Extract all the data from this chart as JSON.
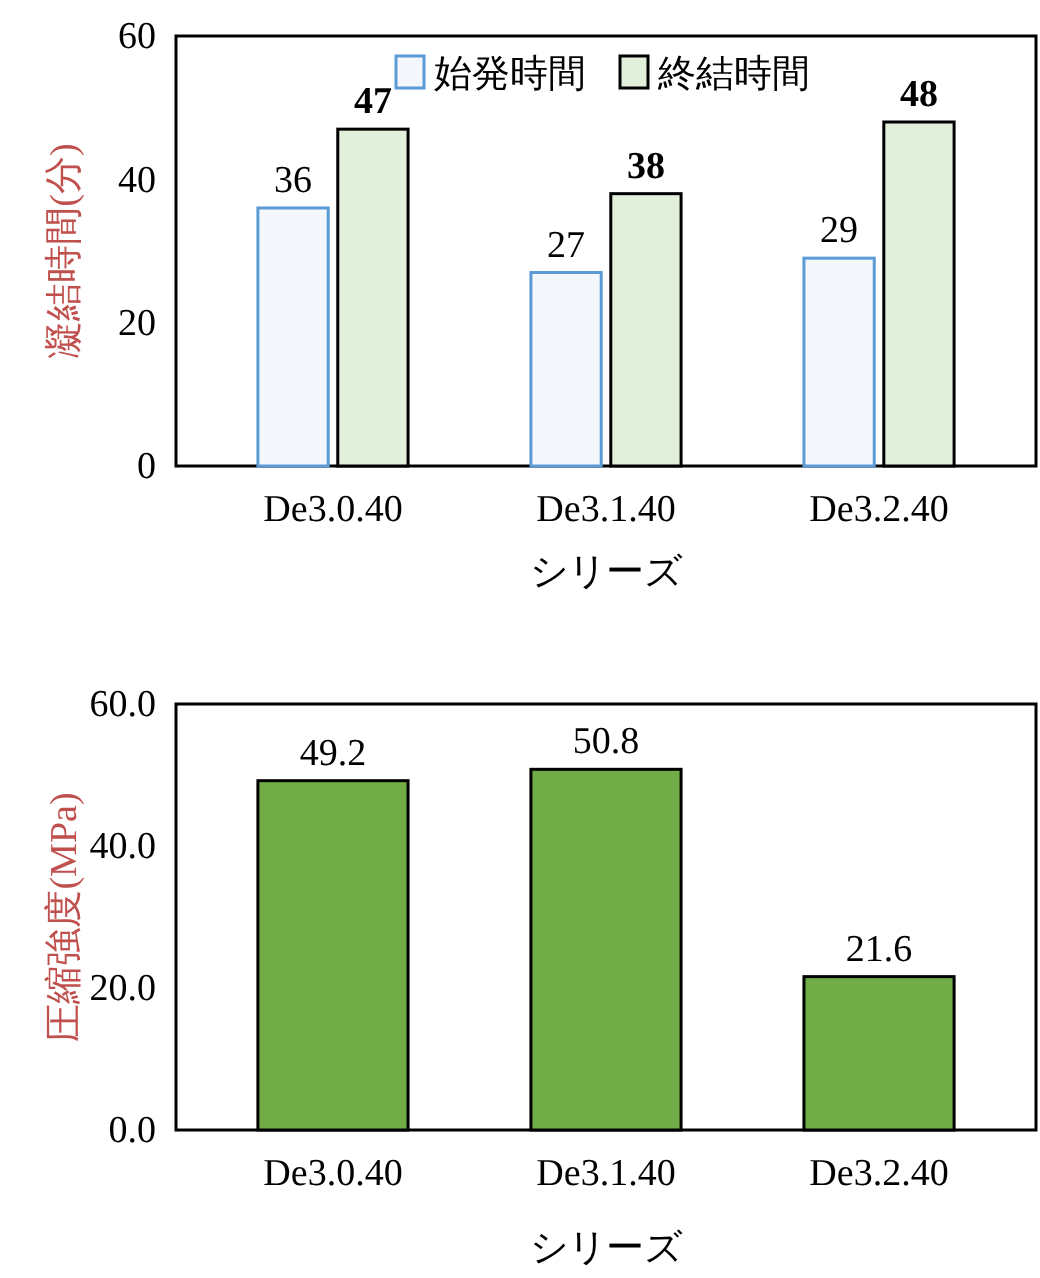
{
  "chart_data": [
    {
      "type": "bar",
      "ylabel": "凝結時間(分)",
      "xlabel": "シリーズ",
      "categories": [
        "De3.0.40",
        "De3.1.40",
        "De3.2.40"
      ],
      "series": [
        {
          "name": "始発時間",
          "color": "#f4f8fc",
          "values": [
            36,
            27,
            29
          ]
        },
        {
          "name": "終結時間",
          "color": "#e2efda",
          "values": [
            47,
            38,
            48
          ]
        }
      ],
      "ylim": [
        0,
        60
      ],
      "yticks": [
        0,
        20,
        40,
        60
      ],
      "data_labels": true,
      "legend": "top right"
    },
    {
      "type": "bar",
      "ylabel": "圧縮強度(MPa)",
      "xlabel": "シリーズ",
      "categories": [
        "De3.0.40",
        "De3.1.40",
        "De3.2.40"
      ],
      "series": [
        {
          "color": "#70ad47",
          "values": [
            49.2,
            50.8,
            21.6
          ]
        }
      ],
      "ylim": [
        0,
        60
      ],
      "yticks": [
        {
          "value": 0,
          "label": "0.0"
        },
        {
          "value": 20,
          "label": "20.0"
        },
        {
          "value": 40,
          "label": "40.0"
        },
        {
          "value": 60,
          "label": "60.0"
        }
      ],
      "data_labels": true
    }
  ]
}
